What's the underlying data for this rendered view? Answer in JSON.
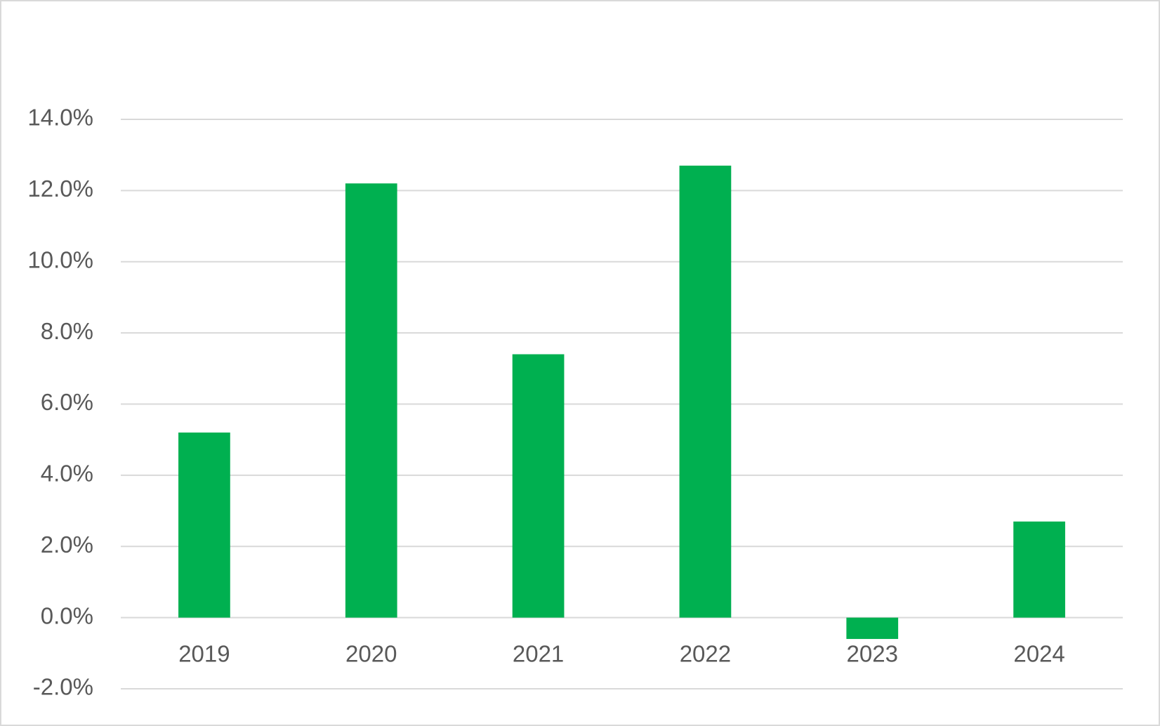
{
  "chart_data": {
    "type": "bar",
    "categories": [
      "2019",
      "2020",
      "2021",
      "2022",
      "2023",
      "2024"
    ],
    "values": [
      5.2,
      12.2,
      7.4,
      12.7,
      -0.6,
      2.7
    ],
    "color": "#00b050",
    "ylim": [
      -2,
      14
    ],
    "yticks": [
      {
        "value": -2,
        "label": "-2.0%"
      },
      {
        "value": 0,
        "label": "0.0%"
      },
      {
        "value": 2,
        "label": "2.0%"
      },
      {
        "value": 4,
        "label": "4.0%"
      },
      {
        "value": 6,
        "label": "6.0%"
      },
      {
        "value": 8,
        "label": "8.0%"
      },
      {
        "value": 10,
        "label": "10.0%"
      },
      {
        "value": 12,
        "label": "12.0%"
      },
      {
        "value": 14,
        "label": "14.0%"
      }
    ],
    "grid": true
  }
}
